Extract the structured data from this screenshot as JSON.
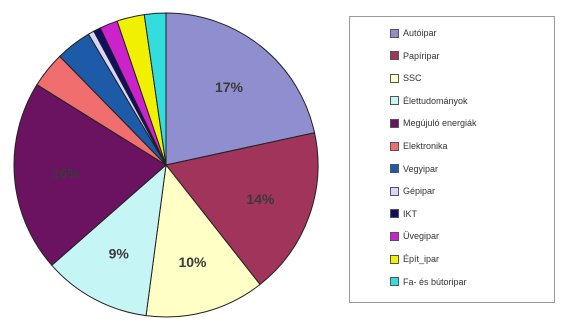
{
  "chart_data": {
    "type": "pie",
    "title": "",
    "slices": [
      {
        "label": "Autóipar",
        "value": 17,
        "color": "#8f8fcf",
        "data_label": "17%"
      },
      {
        "label": "Papíripar",
        "value": 14,
        "color": "#a0345a",
        "data_label": "14%"
      },
      {
        "label": "SSC",
        "value": 10,
        "color": "#ffffc6",
        "data_label": "10%"
      },
      {
        "label": "Élettudományok",
        "value": 9,
        "color": "#c6f5f5",
        "data_label": "9%"
      },
      {
        "label": "Megújuló energiák",
        "value": 16,
        "color": "#6b1260",
        "data_label": "16%"
      },
      {
        "label": "Elektronika",
        "value": 3,
        "color": "#f06e6e",
        "data_label": ""
      },
      {
        "label": "Vegyipar",
        "value": 3,
        "color": "#1d5aa8",
        "data_label": ""
      },
      {
        "label": "Gépipar",
        "value": 0.5,
        "color": "#d6d6ff",
        "data_label": ""
      },
      {
        "label": "IKT",
        "value": 0.6,
        "color": "#101060",
        "data_label": ""
      },
      {
        "label": "Üvegipar",
        "value": 1.5,
        "color": "#cc22cc",
        "data_label": ""
      },
      {
        "label": "Épít_ipar",
        "value": 2.3,
        "color": "#f0f000",
        "data_label": ""
      },
      {
        "label": "Fa- és bútoripar",
        "value": 1.8,
        "color": "#33dddd",
        "data_label": ""
      }
    ],
    "legend": "right"
  }
}
